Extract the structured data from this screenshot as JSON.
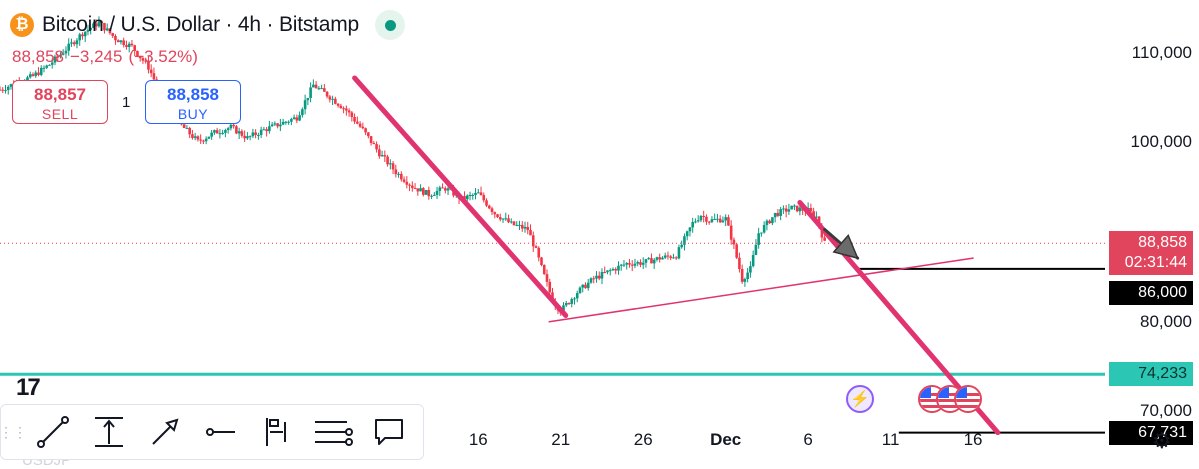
{
  "header": {
    "title": "Bitcoin / U.S. Dollar · 4h · Bitstamp",
    "coin_symbol": "₿",
    "last": "88,858",
    "change": "−3,245",
    "change_pct": "(−3.52%)",
    "live_color": "#089981"
  },
  "trade": {
    "sell_price": "88,857",
    "sell_label": "SELL",
    "buy_price": "88,858",
    "buy_label": "BUY",
    "spread": "1"
  },
  "price_tag": {
    "price": "88,858",
    "countdown": "02:31:44"
  },
  "levels": [
    {
      "label": "86,000",
      "value": 86000,
      "style": "black"
    },
    {
      "label": "74,233",
      "value": 74233,
      "style": "teal"
    },
    {
      "label": "67,731",
      "value": 67731,
      "style": "black"
    }
  ],
  "bottom_ticker": "USDJP",
  "colors": {
    "up": "#089981",
    "down": "#f23645",
    "pink": "#e0336f",
    "teal": "#2cc6b4",
    "accent": "#e0455d"
  },
  "chart_data": {
    "type": "candlestick",
    "ylim": [
      64000,
      116000
    ],
    "y_ticks": [
      70000,
      80000,
      100000,
      110000
    ],
    "y_tick_labels": [
      "70,000",
      "80,000",
      "100,000",
      "110,000"
    ],
    "x_tick_labels": [
      {
        "label": "11",
        "day": 11
      },
      {
        "label": "16",
        "day": 16
      },
      {
        "label": "21",
        "day": 21
      },
      {
        "label": "26",
        "day": 26
      },
      {
        "label": "Dec",
        "day": 31,
        "bold": true
      },
      {
        "label": "6",
        "day": 36
      },
      {
        "label": "11",
        "day": 41
      },
      {
        "label": "16",
        "day": 46
      }
    ],
    "x_range": [
      -13,
      54
    ],
    "current_price": 88858,
    "horizontal_levels": [
      86000,
      74233,
      67731
    ],
    "price_path": [
      [
        -13,
        106000
      ],
      [
        -11,
        107500
      ],
      [
        -10,
        108800
      ],
      [
        -9,
        110500
      ],
      [
        -8,
        112300
      ],
      [
        -7,
        113500
      ],
      [
        -6,
        111700
      ],
      [
        -5,
        110800
      ],
      [
        -4,
        108500
      ],
      [
        -3,
        104500
      ],
      [
        -2,
        102000
      ],
      [
        -1,
        100200
      ],
      [
        0,
        101200
      ],
      [
        1,
        101800
      ],
      [
        2,
        100600
      ],
      [
        3,
        101500
      ],
      [
        4,
        102200
      ],
      [
        5,
        102900
      ],
      [
        6,
        106500
      ],
      [
        7,
        105200
      ],
      [
        8,
        103700
      ],
      [
        9,
        101500
      ],
      [
        10,
        98900
      ],
      [
        11,
        96800
      ],
      [
        12,
        95200
      ],
      [
        13,
        94300
      ],
      [
        14,
        95000
      ],
      [
        15,
        93800
      ],
      [
        16,
        94400
      ],
      [
        17,
        92200
      ],
      [
        18,
        91000
      ],
      [
        19,
        90400
      ],
      [
        19.5,
        88000
      ],
      [
        20,
        85200
      ],
      [
        20.5,
        82500
      ],
      [
        21,
        81300
      ],
      [
        22,
        83400
      ],
      [
        23,
        84900
      ],
      [
        24,
        85800
      ],
      [
        25,
        86600
      ],
      [
        26,
        86700
      ],
      [
        27,
        87200
      ],
      [
        28,
        87500
      ],
      [
        29,
        91100
      ],
      [
        29.5,
        92000
      ],
      [
        30,
        91400
      ],
      [
        31,
        91600
      ],
      [
        31.5,
        88500
      ],
      [
        32,
        84800
      ],
      [
        32.5,
        86000
      ],
      [
        33,
        90000
      ],
      [
        34,
        92100
      ],
      [
        35,
        92800
      ],
      [
        36,
        92500
      ],
      [
        36.5,
        91800
      ],
      [
        37,
        88858
      ]
    ],
    "trendlines": [
      {
        "from": [
          8.5,
          107300
        ],
        "to": [
          21.3,
          80800
        ],
        "color": "pink",
        "width": 5
      },
      {
        "from": [
          20.3,
          80100
        ],
        "to": [
          46,
          87200
        ],
        "color": "pink",
        "width": 1.5
      },
      {
        "from": [
          35.5,
          93400
        ],
        "to": [
          47.5,
          67731
        ],
        "color": "pink",
        "width": 5
      },
      {
        "from": [
          37,
          90400
        ],
        "to": [
          39,
          87200
        ],
        "color": "dark",
        "width": 3,
        "arrow": true
      }
    ]
  }
}
